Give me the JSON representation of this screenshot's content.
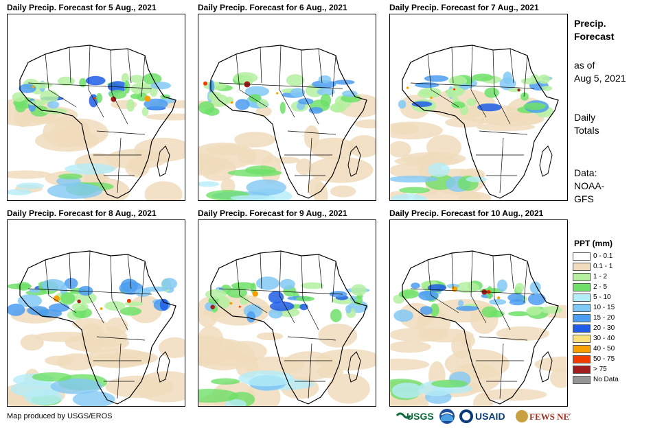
{
  "panels": [
    {
      "title": "Daily Precip. Forecast for 5 Aug., 2021"
    },
    {
      "title": "Daily Precip. Forecast for 6 Aug., 2021"
    },
    {
      "title": "Daily Precip. Forecast for 7 Aug., 2021"
    },
    {
      "title": "Daily Precip. Forecast for 8 Aug., 2021"
    },
    {
      "title": "Daily Precip. Forecast for 9 Aug., 2021"
    },
    {
      "title": "Daily Precip. Forecast for 10 Aug., 2021"
    }
  ],
  "sidebar": {
    "title_line1": "Precip.",
    "title_line2": "Forecast",
    "asof_line1": "as of",
    "asof_line2": "Aug 5, 2021",
    "totals_line1": "Daily",
    "totals_line2": "Totals",
    "data_line1": "Data:",
    "data_line2": "NOAA-",
    "data_line3": "GFS"
  },
  "legend": {
    "title": "PPT (mm)",
    "items": [
      {
        "label": "0 - 0.1",
        "color": "#ffffff"
      },
      {
        "label": "0.1 - 1",
        "color": "#f0dcbc"
      },
      {
        "label": "1 - 2",
        "color": "#b4f0a0"
      },
      {
        "label": "2 - 5",
        "color": "#6ee068"
      },
      {
        "label": "5 - 10",
        "color": "#b4ecf8"
      },
      {
        "label": "10 - 15",
        "color": "#82c8f4"
      },
      {
        "label": "15 - 20",
        "color": "#4c9ef0"
      },
      {
        "label": "20 - 30",
        "color": "#1e5ee6"
      },
      {
        "label": "30 - 40",
        "color": "#f8e07c"
      },
      {
        "label": "40 - 50",
        "color": "#f8a000"
      },
      {
        "label": "50 - 75",
        "color": "#f03c00"
      },
      {
        "label": "> 75",
        "color": "#a01e1e"
      },
      {
        "label": "No Data",
        "color": "#969696"
      }
    ]
  },
  "footer": {
    "credit": "Map produced by USGS/EROS",
    "logos": [
      "USGS",
      "NOAA",
      "USAID",
      "FEWS NET"
    ]
  }
}
